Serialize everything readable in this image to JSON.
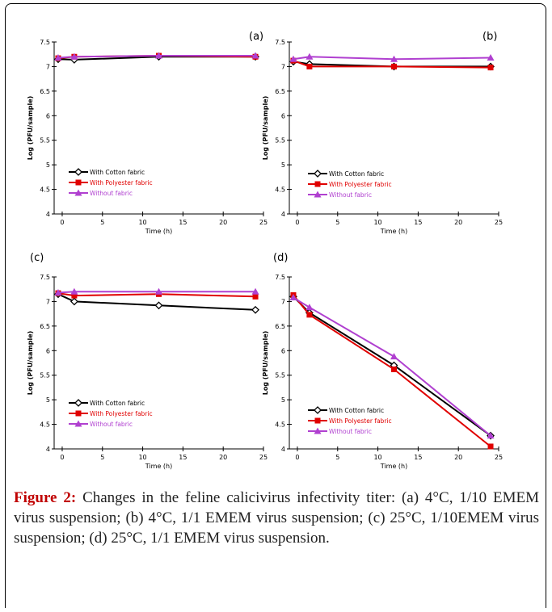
{
  "caption": {
    "label": "Figure 2:",
    "text": " Changes in the feline calicivirus infectivity titer: (a) 4°C, 1/10 EMEM virus suspension; (b) 4°C, 1/1 EMEM virus suspension; (c) 25°C, 1/10EMEM virus suspension; (d) 25°C, 1/1 EMEM virus suspension."
  },
  "chart_data": [
    {
      "type": "line",
      "panel_label": "(a)",
      "xlabel": "Time (h)",
      "ylabel": "Log (PFU/sample)",
      "xlim": [
        -1,
        25
      ],
      "ylim": [
        4,
        7.5
      ],
      "x_ticks": [
        "0",
        "5",
        "10",
        "15",
        "20",
        "25"
      ],
      "y_ticks": [
        "4",
        "4.5",
        "5",
        "5.5",
        "6",
        "6.5",
        "7",
        "7.5"
      ],
      "legend_position": "bottom-left",
      "series": [
        {
          "name": "With Cotton fabric",
          "color": "#000000",
          "marker": "diamond",
          "x": [
            -0.5,
            1.5,
            12,
            24
          ],
          "y": [
            7.15,
            7.14,
            7.2,
            7.2
          ]
        },
        {
          "name": "With Polyester fabric",
          "color": "#e00000",
          "marker": "square",
          "x": [
            -0.5,
            1.5,
            12,
            24
          ],
          "y": [
            7.17,
            7.2,
            7.22,
            7.2
          ]
        },
        {
          "name": "Without fabric",
          "color": "#b040d0",
          "marker": "triangle",
          "x": [
            -0.5,
            1.5,
            12,
            24
          ],
          "y": [
            7.18,
            7.2,
            7.22,
            7.22
          ]
        }
      ]
    },
    {
      "type": "line",
      "panel_label": "(b)",
      "xlabel": "Time (h)",
      "ylabel": "Log (PFU/sample)",
      "xlim": [
        -1,
        25
      ],
      "ylim": [
        4,
        7.5
      ],
      "x_ticks": [
        "0",
        "5",
        "10",
        "15",
        "20",
        "25"
      ],
      "y_ticks": [
        "4",
        "4.5",
        "5",
        "5.5",
        "6",
        "6.5",
        "7",
        "7.5"
      ],
      "legend_position": "bottom-left",
      "series": [
        {
          "name": "With Cotton fabric",
          "color": "#000000",
          "marker": "diamond",
          "x": [
            -0.5,
            1.5,
            12,
            24
          ],
          "y": [
            7.1,
            7.05,
            7.0,
            7.0
          ]
        },
        {
          "name": "With Polyester fabric",
          "color": "#e00000",
          "marker": "square",
          "x": [
            -0.5,
            1.5,
            12,
            24
          ],
          "y": [
            7.12,
            7.0,
            7.0,
            6.98
          ]
        },
        {
          "name": "Without fabric",
          "color": "#b040d0",
          "marker": "triangle",
          "x": [
            -0.5,
            1.5,
            12,
            24
          ],
          "y": [
            7.15,
            7.2,
            7.15,
            7.18
          ]
        }
      ]
    },
    {
      "type": "line",
      "panel_label": "(c)",
      "xlabel": "Time (h)",
      "ylabel": "Log (PFU/sample)",
      "xlim": [
        -1,
        25
      ],
      "ylim": [
        4,
        7.5
      ],
      "x_ticks": [
        "0",
        "5",
        "10",
        "15",
        "20",
        "25"
      ],
      "y_ticks": [
        "4",
        "4.5",
        "5",
        "5.5",
        "6",
        "6.5",
        "7",
        "7.5"
      ],
      "legend_position": "bottom-left",
      "series": [
        {
          "name": "With Cotton fabric",
          "color": "#000000",
          "marker": "diamond",
          "x": [
            -0.5,
            1.5,
            12,
            24
          ],
          "y": [
            7.15,
            7.0,
            6.92,
            6.83
          ]
        },
        {
          "name": "With Polyester fabric",
          "color": "#e00000",
          "marker": "square",
          "x": [
            -0.5,
            1.5,
            12,
            24
          ],
          "y": [
            7.17,
            7.12,
            7.15,
            7.1
          ]
        },
        {
          "name": "Without fabric",
          "color": "#b040d0",
          "marker": "triangle",
          "x": [
            -0.5,
            1.5,
            12,
            24
          ],
          "y": [
            7.18,
            7.2,
            7.2,
            7.2
          ]
        }
      ]
    },
    {
      "type": "line",
      "panel_label": "(d)",
      "xlabel": "Time (h)",
      "ylabel": "Log (PFU/sample)",
      "xlim": [
        -1,
        25
      ],
      "ylim": [
        4,
        7.5
      ],
      "x_ticks": [
        "0",
        "5",
        "10",
        "15",
        "20",
        "25"
      ],
      "y_ticks": [
        "4",
        "4.5",
        "5",
        "5.5",
        "6",
        "6.5",
        "7",
        "7.5"
      ],
      "legend_position": "bottom-left",
      "series": [
        {
          "name": "With Cotton fabric",
          "color": "#000000",
          "marker": "diamond",
          "x": [
            -0.5,
            1.5,
            12,
            24
          ],
          "y": [
            7.1,
            6.77,
            5.7,
            4.27
          ]
        },
        {
          "name": "With Polyester fabric",
          "color": "#e00000",
          "marker": "square",
          "x": [
            -0.5,
            1.5,
            12,
            24
          ],
          "y": [
            7.13,
            6.73,
            5.62,
            4.05
          ]
        },
        {
          "name": "Without fabric",
          "color": "#b040d0",
          "marker": "triangle",
          "x": [
            -0.5,
            1.5,
            12,
            24
          ],
          "y": [
            7.08,
            6.88,
            5.88,
            4.27
          ]
        }
      ]
    }
  ]
}
